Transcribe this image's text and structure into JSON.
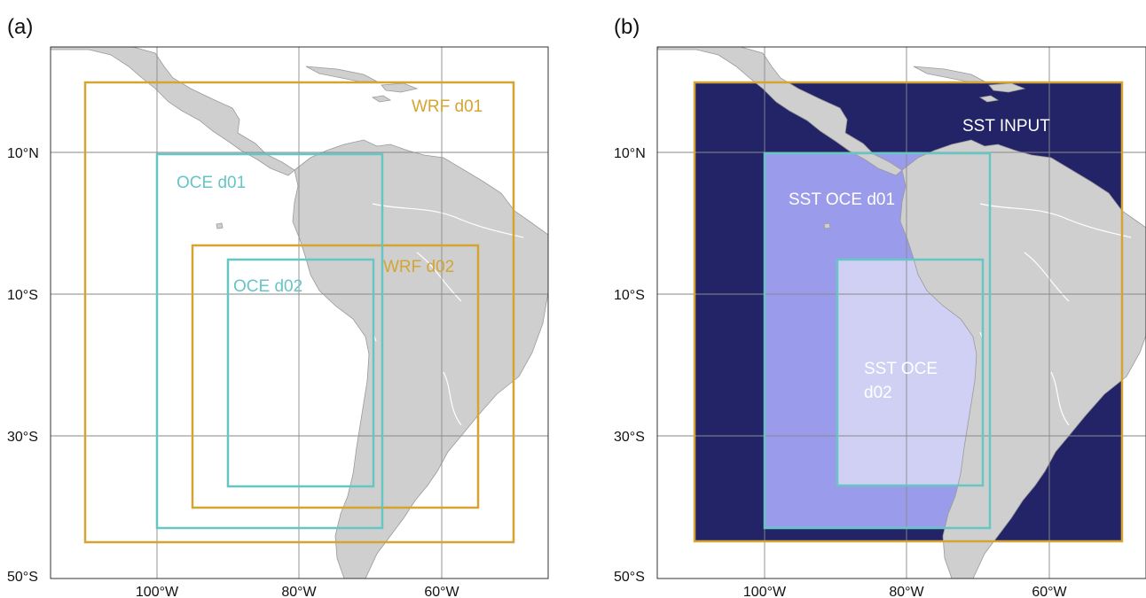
{
  "colors": {
    "wrf": "#d4a533",
    "oce": "#66c6c4",
    "sst_input": "#232468",
    "sst_oce_d01": "#9b9bec",
    "sst_oce_d02": "#d0d0f5",
    "land": "#cfcfcf"
  },
  "panels": [
    {
      "letter": "(a)",
      "lat_ticks": [
        "10°N",
        "10°S",
        "30°S",
        "50°S"
      ],
      "lon_ticks": [
        "100°W",
        "80°W",
        "60°W"
      ],
      "labels": {
        "wrf_d01": "WRF d01",
        "wrf_d02": "WRF d02",
        "oce_d01": "OCE d01",
        "oce_d02": "OCE d02"
      }
    },
    {
      "letter": "(b)",
      "lat_ticks": [
        "10°N",
        "10°S",
        "30°S",
        "50°S"
      ],
      "lon_ticks": [
        "100°W",
        "80°W",
        "60°W"
      ],
      "labels": {
        "sst_input": "SST INPUT",
        "sst_oce_d01": "SST OCE d01",
        "sst_oce_d02_line1": "SST OCE",
        "sst_oce_d02_line2": "d02"
      }
    }
  ]
}
